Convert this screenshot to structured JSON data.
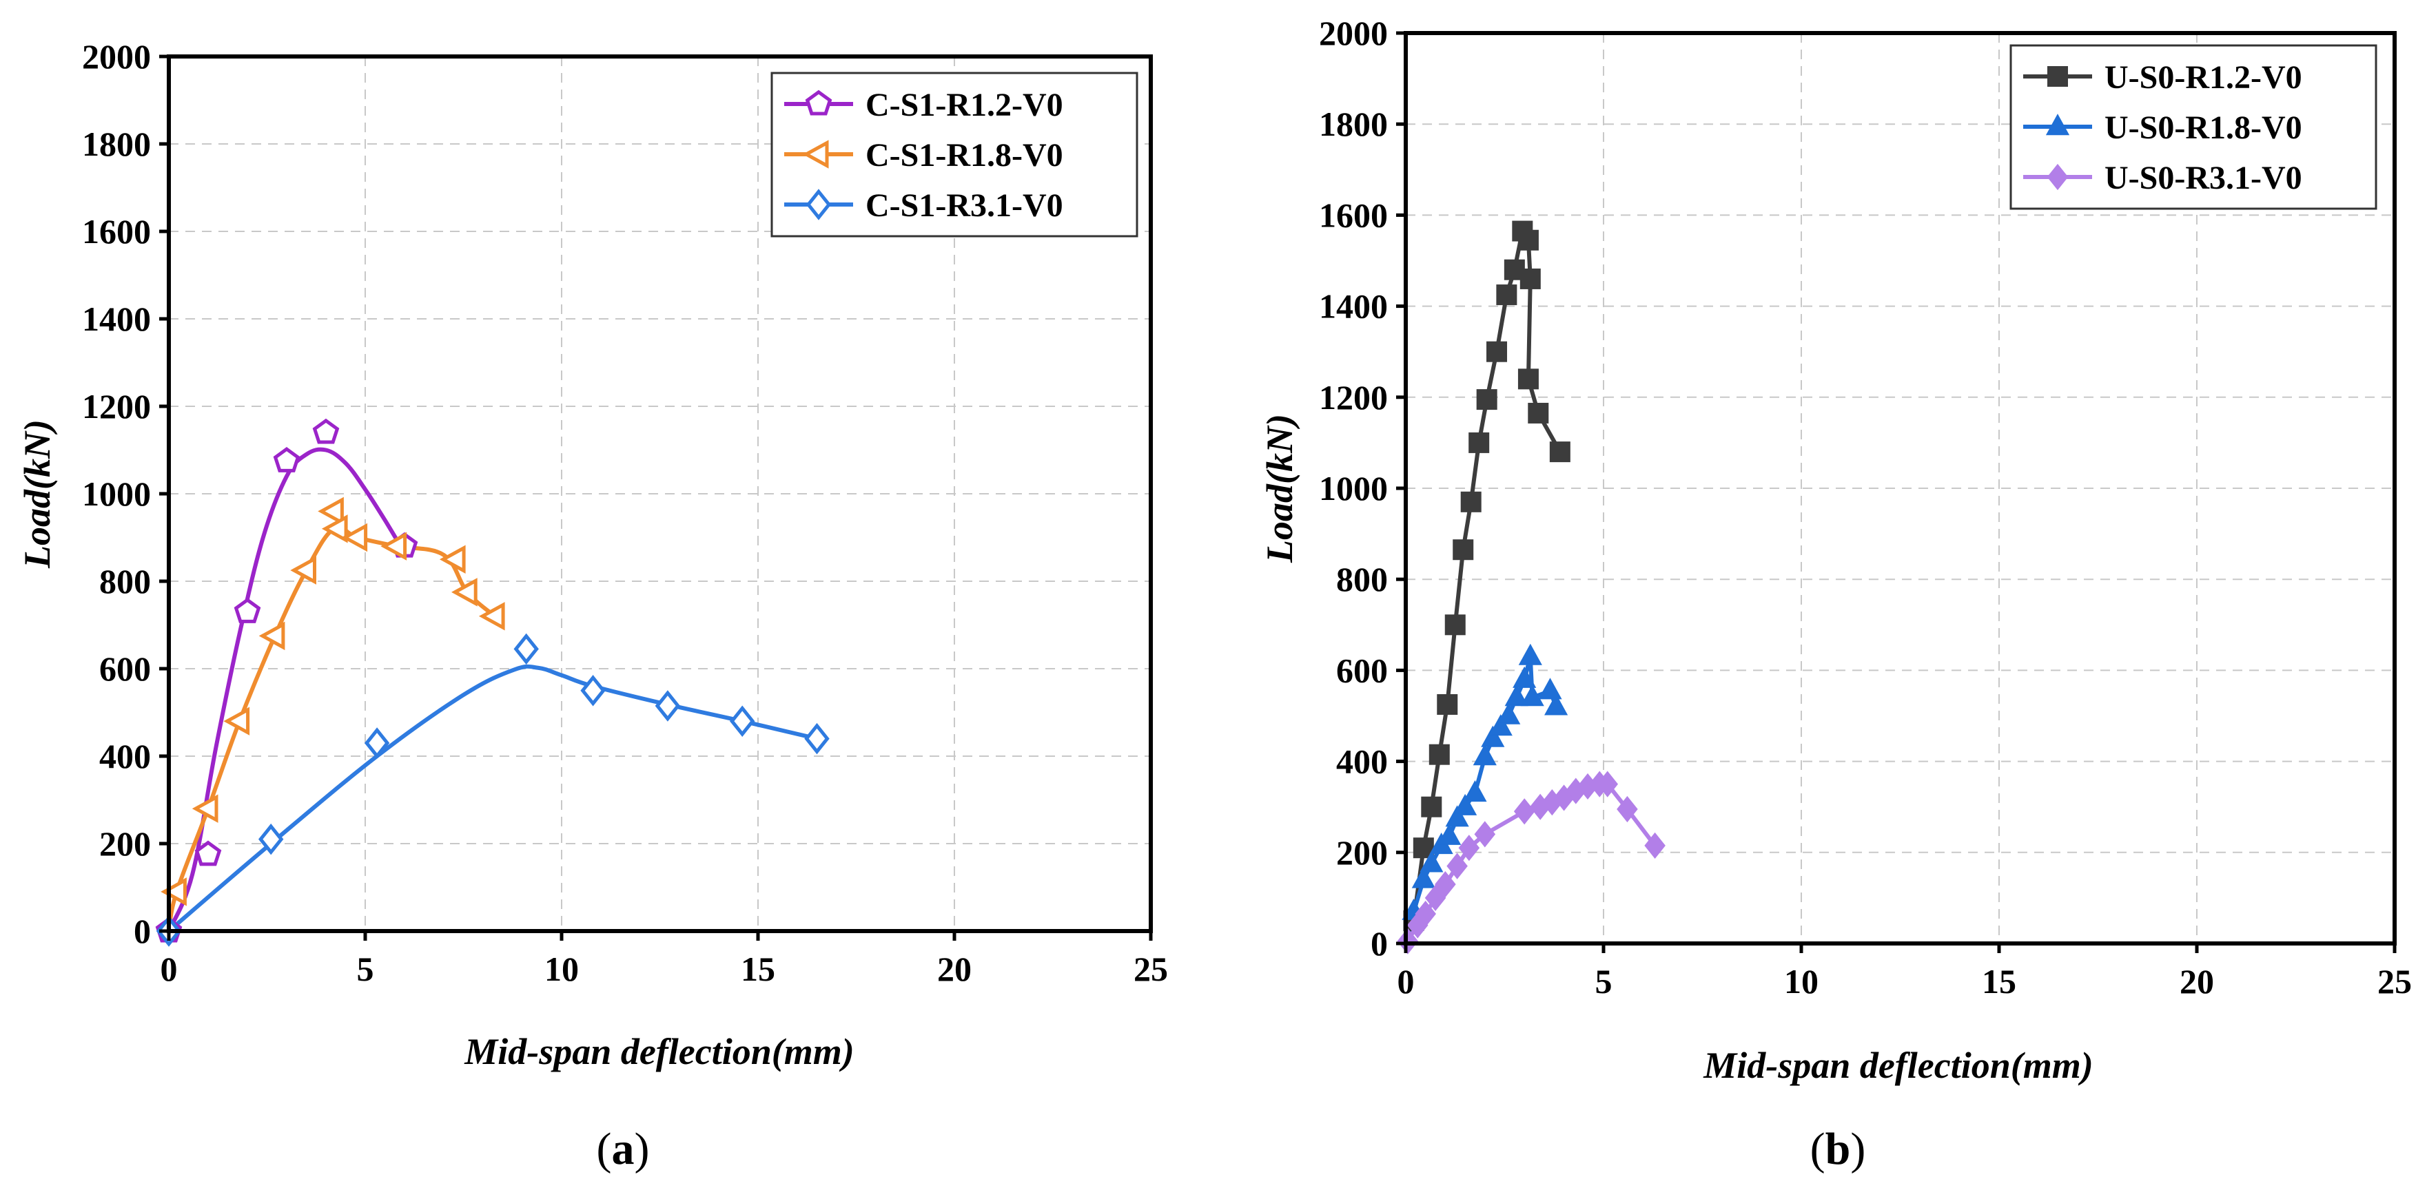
{
  "chart_data": [
    {
      "id": "a",
      "type": "line",
      "panel_label": "a",
      "xlabel": "Mid-span deflection(mm)",
      "ylabel": "Load(kN)",
      "xlim": [
        0,
        25
      ],
      "ylim": [
        0,
        2000
      ],
      "xticks": [
        0,
        5,
        10,
        15,
        20,
        25
      ],
      "yticks": [
        0,
        200,
        400,
        600,
        800,
        1000,
        1200,
        1400,
        1600,
        1800,
        2000
      ],
      "grid": true,
      "legend_position": "top-right",
      "series": [
        {
          "name": "C-S1-R1.2-V0",
          "color": "#9b24c9",
          "marker": "pentagon",
          "points": [
            [
              0,
              0
            ],
            [
              1.0,
              175
            ],
            [
              2.0,
              730
            ],
            [
              3.0,
              1075
            ],
            [
              4.0,
              1140
            ],
            [
              6.0,
              880
            ]
          ],
          "curve": [
            [
              0,
              0
            ],
            [
              0.6,
              130
            ],
            [
              1.2,
              420
            ],
            [
              1.8,
              680
            ],
            [
              2.4,
              900
            ],
            [
              3.0,
              1040
            ],
            [
              3.5,
              1090
            ],
            [
              4.0,
              1100
            ],
            [
              4.5,
              1070
            ],
            [
              5.0,
              1010
            ],
            [
              5.5,
              940
            ],
            [
              5.9,
              880
            ]
          ]
        },
        {
          "name": "C-S1-R1.8-V0",
          "color": "#f08c2e",
          "marker": "triangle-left",
          "points": [
            [
              0.2,
              90
            ],
            [
              1.0,
              280
            ],
            [
              1.8,
              480
            ],
            [
              2.7,
              675
            ],
            [
              3.5,
              825
            ],
            [
              4.2,
              960
            ],
            [
              4.3,
              920
            ],
            [
              4.8,
              900
            ],
            [
              5.8,
              880
            ],
            [
              7.3,
              850
            ],
            [
              7.6,
              775
            ],
            [
              8.3,
              720
            ]
          ],
          "curve": [
            [
              0,
              0
            ],
            [
              0.2,
              90
            ],
            [
              1.0,
              280
            ],
            [
              1.8,
              480
            ],
            [
              2.7,
              675
            ],
            [
              3.5,
              825
            ],
            [
              4.2,
              920
            ],
            [
              4.8,
              900
            ],
            [
              5.8,
              880
            ],
            [
              7.0,
              860
            ],
            [
              7.6,
              775
            ],
            [
              8.3,
              720
            ]
          ]
        },
        {
          "name": "C-S1-R3.1-V0",
          "color": "#2f7be0",
          "marker": "diamond",
          "points": [
            [
              0,
              0
            ],
            [
              2.6,
              210
            ],
            [
              5.3,
              430
            ],
            [
              9.1,
              645
            ],
            [
              10.8,
              550
            ],
            [
              12.7,
              515
            ],
            [
              14.6,
              480
            ],
            [
              16.5,
              440
            ]
          ],
          "curve": [
            [
              0,
              0
            ],
            [
              2.6,
              200
            ],
            [
              5.3,
              400
            ],
            [
              7.5,
              540
            ],
            [
              8.8,
              598
            ],
            [
              9.4,
              602
            ],
            [
              10.0,
              585
            ],
            [
              10.8,
              560
            ],
            [
              12.7,
              518
            ],
            [
              14.6,
              480
            ],
            [
              16.5,
              440
            ]
          ]
        }
      ]
    },
    {
      "id": "b",
      "type": "line",
      "panel_label": "b",
      "xlabel": "Mid-span deflection(mm)",
      "ylabel": "Load(kN)",
      "xlim": [
        0,
        25
      ],
      "ylim": [
        0,
        2000
      ],
      "xticks": [
        0,
        5,
        10,
        15,
        20,
        25
      ],
      "yticks": [
        0,
        200,
        400,
        600,
        800,
        1000,
        1200,
        1400,
        1600,
        1800,
        2000
      ],
      "grid": true,
      "legend_position": "top-right",
      "series": [
        {
          "name": "U-S0-R1.2-V0",
          "color": "#3c3c3c",
          "marker": "square",
          "points": [
            [
              0.2,
              50
            ],
            [
              0.45,
              210
            ],
            [
              0.65,
              300
            ],
            [
              0.85,
              415
            ],
            [
              1.05,
              525
            ],
            [
              1.25,
              700
            ],
            [
              1.45,
              865
            ],
            [
              1.65,
              970
            ],
            [
              1.85,
              1100
            ],
            [
              2.05,
              1195
            ],
            [
              2.3,
              1300
            ],
            [
              2.55,
              1425
            ],
            [
              2.75,
              1480
            ],
            [
              2.95,
              1565
            ],
            [
              3.1,
              1545
            ],
            [
              3.15,
              1460
            ],
            [
              3.1,
              1240
            ],
            [
              3.35,
              1165
            ],
            [
              3.9,
              1080
            ]
          ],
          "curve": [
            [
              0,
              0
            ],
            [
              0.2,
              50
            ],
            [
              0.45,
              210
            ],
            [
              0.65,
              300
            ],
            [
              0.85,
              415
            ],
            [
              1.05,
              525
            ],
            [
              1.25,
              700
            ],
            [
              1.45,
              865
            ],
            [
              1.65,
              970
            ],
            [
              1.85,
              1100
            ],
            [
              2.05,
              1195
            ],
            [
              2.3,
              1300
            ],
            [
              2.55,
              1425
            ],
            [
              2.75,
              1480
            ],
            [
              2.95,
              1565
            ],
            [
              3.1,
              1545
            ],
            [
              3.15,
              1460
            ],
            [
              3.1,
              1240
            ],
            [
              3.35,
              1165
            ],
            [
              3.9,
              1080
            ]
          ]
        },
        {
          "name": "U-S0-R1.8-V0",
          "color": "#1f6fd6",
          "marker": "triangle-up",
          "points": [
            [
              0.2,
              70
            ],
            [
              0.45,
              140
            ],
            [
              0.65,
              175
            ],
            [
              0.9,
              215
            ],
            [
              1.1,
              235
            ],
            [
              1.3,
              275
            ],
            [
              1.5,
              300
            ],
            [
              1.75,
              330
            ],
            [
              2.0,
              410
            ],
            [
              2.2,
              450
            ],
            [
              2.4,
              475
            ],
            [
              2.6,
              500
            ],
            [
              2.8,
              540
            ],
            [
              3.0,
              580
            ],
            [
              3.15,
              630
            ],
            [
              3.2,
              540
            ],
            [
              3.65,
              555
            ],
            [
              3.8,
              520
            ]
          ],
          "curve": [
            [
              0,
              0
            ],
            [
              0.2,
              70
            ],
            [
              0.45,
              140
            ],
            [
              0.65,
              175
            ],
            [
              0.9,
              215
            ],
            [
              1.1,
              235
            ],
            [
              1.3,
              275
            ],
            [
              1.5,
              300
            ],
            [
              1.75,
              330
            ],
            [
              2.0,
              410
            ],
            [
              2.2,
              450
            ],
            [
              2.4,
              475
            ],
            [
              2.6,
              500
            ],
            [
              2.8,
              540
            ],
            [
              3.0,
              580
            ],
            [
              3.15,
              630
            ],
            [
              3.2,
              540
            ],
            [
              3.65,
              555
            ],
            [
              3.8,
              520
            ]
          ]
        },
        {
          "name": "U-S0-R3.1-V0",
          "color": "#b27fe8",
          "marker": "diamond",
          "points": [
            [
              0.05,
              5
            ],
            [
              0.3,
              40
            ],
            [
              0.5,
              65
            ],
            [
              0.75,
              100
            ],
            [
              1.0,
              130
            ],
            [
              1.3,
              170
            ],
            [
              1.6,
              210
            ],
            [
              2.0,
              240
            ],
            [
              3.0,
              290
            ],
            [
              3.4,
              300
            ],
            [
              3.7,
              310
            ],
            [
              4.0,
              320
            ],
            [
              4.3,
              335
            ],
            [
              4.6,
              345
            ],
            [
              4.9,
              350
            ],
            [
              5.1,
              350
            ],
            [
              5.6,
              295
            ],
            [
              6.3,
              215
            ]
          ],
          "curve": [
            [
              0,
              0
            ],
            [
              0.3,
              40
            ],
            [
              0.5,
              65
            ],
            [
              0.75,
              100
            ],
            [
              1.0,
              130
            ],
            [
              1.3,
              170
            ],
            [
              1.6,
              210
            ],
            [
              2.0,
              240
            ],
            [
              3.0,
              290
            ],
            [
              3.4,
              300
            ],
            [
              3.7,
              310
            ],
            [
              4.0,
              320
            ],
            [
              4.3,
              335
            ],
            [
              4.6,
              345
            ],
            [
              4.9,
              350
            ],
            [
              5.1,
              350
            ],
            [
              5.6,
              295
            ],
            [
              6.3,
              215
            ]
          ]
        }
      ]
    }
  ]
}
